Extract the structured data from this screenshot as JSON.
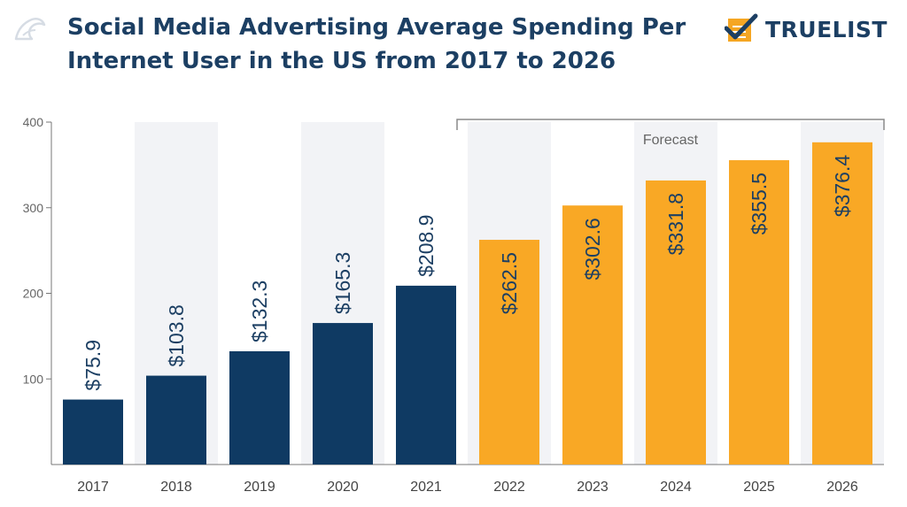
{
  "header": {
    "title": "Social Media Advertising Average Spending Per Internet User in the US from 2017 to 2026",
    "brand": "TRUELIST",
    "brand_color": "#f5a623"
  },
  "chart_data": {
    "type": "bar",
    "title": "Social Media Advertising Average Spending Per Internet User in the US from 2017 to 2026",
    "xlabel": "",
    "ylabel": "",
    "ylim": [
      0,
      400
    ],
    "yticks": [
      100,
      200,
      300,
      400
    ],
    "grid": false,
    "categories": [
      "2017",
      "2018",
      "2019",
      "2020",
      "2021",
      "2022",
      "2023",
      "2024",
      "2025",
      "2026"
    ],
    "values": [
      75.9,
      103.8,
      132.3,
      165.3,
      208.9,
      262.5,
      302.6,
      331.8,
      355.5,
      376.4
    ],
    "data_labels": [
      "$75.9",
      "$103.8",
      "$132.3",
      "$165.3",
      "$208.9",
      "$262.5",
      "$302.6",
      "$331.8",
      "$355.5",
      "$376.4"
    ],
    "forecast": {
      "label": "Forecast",
      "from": "2022",
      "to": "2026"
    },
    "colors": {
      "actual": "#0f3a63",
      "forecast": "#f9a825",
      "band": "#f2f3f6",
      "axis": "#777777",
      "text": "#1c3f63"
    }
  }
}
